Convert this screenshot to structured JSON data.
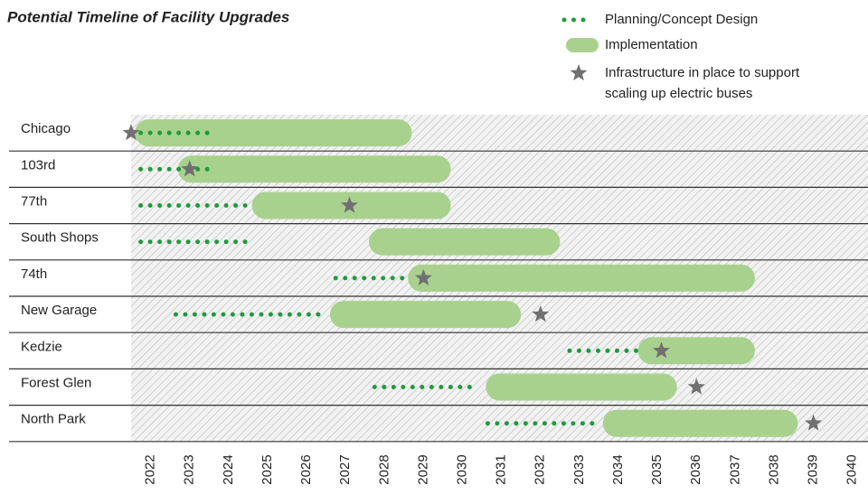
{
  "chart_data": {
    "type": "timeline",
    "title": "Potential Timeline of Facility Upgrades",
    "categories": [
      "Chicago",
      "103rd",
      "77th",
      "South Shops",
      "74th",
      "New Garage",
      "Kedzie",
      "Forest Glen",
      "North Park"
    ],
    "series": [
      {
        "name": "Planning/Concept Design",
        "kind": "dots",
        "color": "#1e9a3c",
        "start": [
          2021.7,
          2021.7,
          2021.7,
          2021.7,
          2026.7,
          2022.6,
          2032.7,
          2027.7,
          2030.6
        ],
        "end": [
          2023.5,
          2023.6,
          2024.6,
          2024.6,
          2028.5,
          2026.5,
          2034.5,
          2030.4,
          2033.5
        ]
      },
      {
        "name": "Implementation",
        "kind": "bar",
        "color": "#a9d18e",
        "start": [
          2021.6,
          2022.7,
          2024.6,
          2027.6,
          2028.6,
          2026.6,
          2034.5,
          2030.6,
          2033.6
        ],
        "end": [
          2028.7,
          2029.7,
          2029.7,
          2032.5,
          2037.5,
          2031.5,
          2037.5,
          2035.5,
          2038.6
        ]
      },
      {
        "name": [
          "Infrastructure in place to support",
          "scaling up electric buses"
        ],
        "kind": "star",
        "color": "#707070",
        "values": [
          2021.5,
          2023.0,
          2027.1,
          null,
          2029.0,
          2032.0,
          2035.1,
          2036.0,
          2039.0
        ]
      }
    ],
    "xlim": [
      2021.5,
      2040.4
    ],
    "xticks": [
      2022,
      2023,
      2024,
      2025,
      2026,
      2027,
      2028,
      2029,
      2030,
      2031,
      2032,
      2033,
      2034,
      2035,
      2036,
      2037,
      2038,
      2039,
      2040
    ]
  }
}
